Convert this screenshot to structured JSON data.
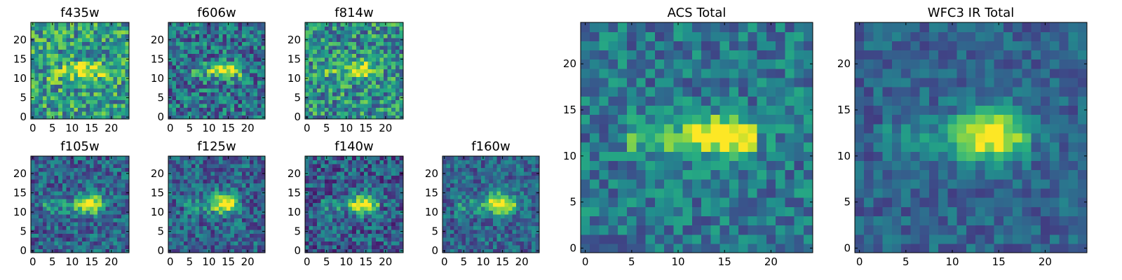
{
  "chart_data": {
    "type": "heatmap",
    "colormap": "viridis",
    "value_range": [
      0,
      1
    ],
    "panels": [
      {
        "title": "f435w",
        "size": 25,
        "noise": 0.3,
        "gal_amp": 0.32,
        "center": [
          14,
          12.5
        ],
        "sigma": [
          2.6,
          1.3
        ],
        "tail_amp": 0.18,
        "tail_x": [
          4,
          18
        ],
        "bg": 0.55,
        "seed": 11,
        "x_ticks": [
          0,
          5,
          10,
          15,
          20
        ],
        "y_ticks": [
          0,
          5,
          10,
          15,
          20
        ]
      },
      {
        "title": "f606w",
        "size": 25,
        "noise": 0.28,
        "gal_amp": 0.55,
        "center": [
          14,
          12.5
        ],
        "sigma": [
          2.4,
          1.2
        ],
        "tail_amp": 0.2,
        "tail_x": [
          6,
          18
        ],
        "bg": 0.38,
        "seed": 23,
        "x_ticks": [
          0,
          5,
          10,
          15,
          20
        ],
        "y_ticks": [
          0,
          5,
          10,
          15,
          20
        ]
      },
      {
        "title": "f814w",
        "size": 25,
        "noise": 0.3,
        "gal_amp": 0.42,
        "center": [
          14,
          12.5
        ],
        "sigma": [
          2.2,
          1.4
        ],
        "tail_amp": 0.15,
        "tail_x": [
          5,
          17
        ],
        "bg": 0.5,
        "seed": 37,
        "x_ticks": [
          0,
          5,
          10,
          15,
          20
        ],
        "y_ticks": [
          0,
          5,
          10,
          15,
          20
        ]
      },
      {
        "title": "f105w",
        "size": 25,
        "noise": 0.22,
        "gal_amp": 0.62,
        "center": [
          14.5,
          12.5
        ],
        "sigma": [
          2.2,
          1.8
        ],
        "tail_amp": 0.18,
        "tail_x": [
          3,
          18
        ],
        "bg": 0.32,
        "seed": 41,
        "x_ticks": [
          0,
          5,
          10,
          15,
          20
        ],
        "y_ticks": [
          0,
          5,
          10,
          15,
          20
        ]
      },
      {
        "title": "f125w",
        "size": 25,
        "noise": 0.22,
        "gal_amp": 0.62,
        "center": [
          14,
          12.5
        ],
        "sigma": [
          2.2,
          1.8
        ],
        "tail_amp": 0.18,
        "tail_x": [
          4,
          18
        ],
        "bg": 0.32,
        "seed": 53,
        "x_ticks": [
          0,
          5,
          10,
          15,
          20
        ],
        "y_ticks": [
          0,
          5,
          10,
          15,
          20
        ]
      },
      {
        "title": "f140w",
        "size": 25,
        "noise": 0.24,
        "gal_amp": 0.6,
        "center": [
          14.5,
          12.5
        ],
        "sigma": [
          2.3,
          1.8
        ],
        "tail_amp": 0.18,
        "tail_x": [
          4,
          18
        ],
        "bg": 0.3,
        "seed": 67,
        "x_ticks": [
          0,
          5,
          10,
          15,
          20
        ],
        "y_ticks": [
          0,
          5,
          10,
          15,
          20
        ]
      },
      {
        "title": "f160w",
        "size": 25,
        "noise": 0.2,
        "gal_amp": 0.62,
        "center": [
          14.5,
          12.5
        ],
        "sigma": [
          2.4,
          1.9
        ],
        "tail_amp": 0.2,
        "tail_x": [
          3,
          18
        ],
        "bg": 0.33,
        "seed": 79,
        "x_ticks": [
          0,
          5,
          10,
          15,
          20
        ],
        "y_ticks": [
          0,
          5,
          10,
          15,
          20
        ]
      },
      {
        "title": "ACS Total",
        "size": 25,
        "noise": 0.2,
        "gal_amp": 0.55,
        "center": [
          14.5,
          12.5
        ],
        "sigma": [
          2.6,
          1.3
        ],
        "tail_amp": 0.25,
        "tail_x": [
          5,
          18
        ],
        "bg": 0.4,
        "seed": 97,
        "x_ticks": [
          0,
          5,
          10,
          15,
          20
        ],
        "y_ticks": [
          0,
          5,
          10,
          15,
          20
        ]
      },
      {
        "title": "WFC3 IR Total",
        "size": 25,
        "noise": 0.14,
        "gal_amp": 0.6,
        "center": [
          14,
          12.5
        ],
        "sigma": [
          2.5,
          2.0
        ],
        "tail_amp": 0.18,
        "tail_x": [
          3,
          18
        ],
        "bg": 0.32,
        "seed": 113,
        "x_ticks": [
          0,
          5,
          10,
          15,
          20
        ],
        "y_ticks": [
          0,
          5,
          10,
          15,
          20
        ]
      }
    ]
  }
}
